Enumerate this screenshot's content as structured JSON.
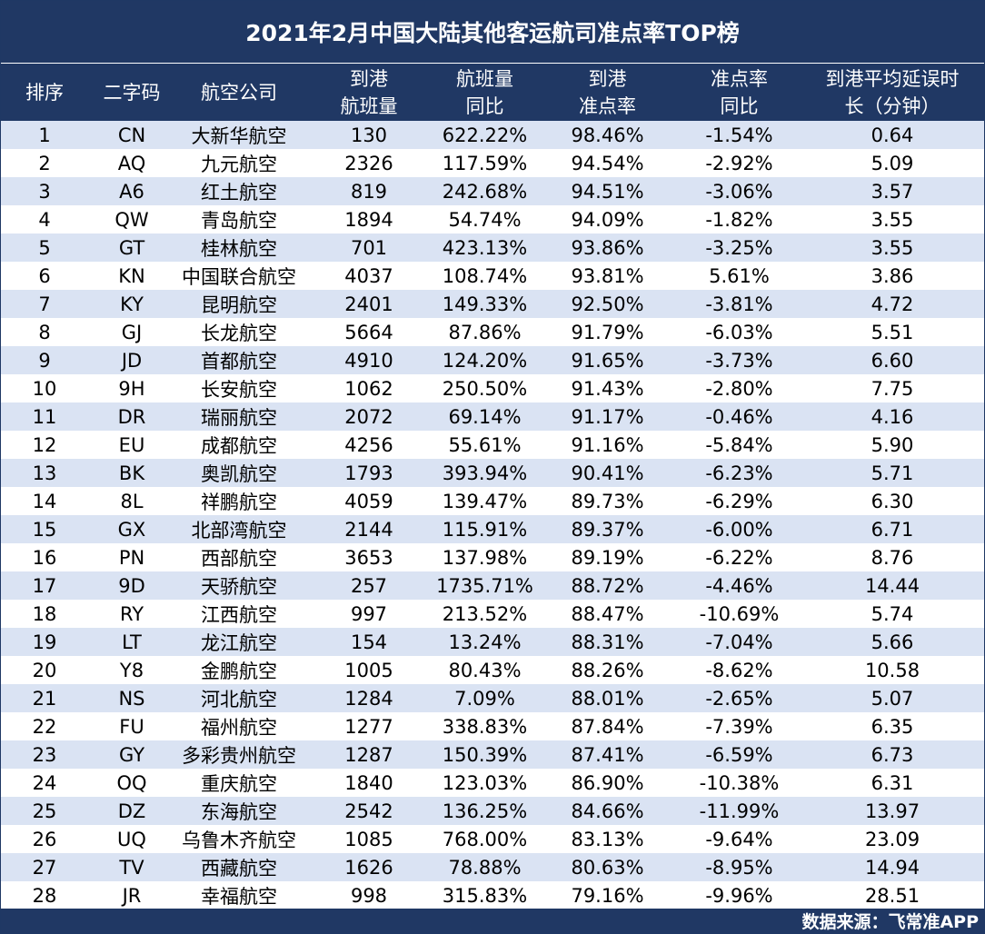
{
  "title": "2021年2月中国大陆其他客运航司准点率TOP榜",
  "headers": [
    [
      "排序"
    ],
    [
      "二字码"
    ],
    [
      "航空公司"
    ],
    [
      "到港",
      "航班量"
    ],
    [
      "航班量",
      "同比"
    ],
    [
      "到港",
      "准点率"
    ],
    [
      "准点率",
      "同比"
    ],
    [
      "到港平均延误时",
      "长（分钟）"
    ]
  ],
  "rows": [
    [
      "1",
      "CN",
      "大新华航空",
      "130",
      "622.22%",
      "98.46%",
      "-1.54%",
      "0.64"
    ],
    [
      "2",
      "AQ",
      "九元航空",
      "2326",
      "117.59%",
      "94.54%",
      "-2.92%",
      "5.09"
    ],
    [
      "3",
      "A6",
      "红土航空",
      "819",
      "242.68%",
      "94.51%",
      "-3.06%",
      "3.57"
    ],
    [
      "4",
      "QW",
      "青岛航空",
      "1894",
      "54.74%",
      "94.09%",
      "-1.82%",
      "3.55"
    ],
    [
      "5",
      "GT",
      "桂林航空",
      "701",
      "423.13%",
      "93.86%",
      "-3.25%",
      "3.55"
    ],
    [
      "6",
      "KN",
      "中国联合航空",
      "4037",
      "108.74%",
      "93.81%",
      "5.61%",
      "3.86"
    ],
    [
      "7",
      "KY",
      "昆明航空",
      "2401",
      "149.33%",
      "92.50%",
      "-3.81%",
      "4.72"
    ],
    [
      "8",
      "GJ",
      "长龙航空",
      "5664",
      "87.86%",
      "91.79%",
      "-6.03%",
      "5.51"
    ],
    [
      "9",
      "JD",
      "首都航空",
      "4910",
      "124.20%",
      "91.65%",
      "-3.73%",
      "6.60"
    ],
    [
      "10",
      "9H",
      "长安航空",
      "1062",
      "250.50%",
      "91.43%",
      "-2.80%",
      "7.75"
    ],
    [
      "11",
      "DR",
      "瑞丽航空",
      "2072",
      "69.14%",
      "91.17%",
      "-0.46%",
      "4.16"
    ],
    [
      "12",
      "EU",
      "成都航空",
      "4256",
      "55.61%",
      "91.16%",
      "-5.84%",
      "5.90"
    ],
    [
      "13",
      "BK",
      "奥凯航空",
      "1793",
      "393.94%",
      "90.41%",
      "-6.23%",
      "5.71"
    ],
    [
      "14",
      "8L",
      "祥鹏航空",
      "4059",
      "139.47%",
      "89.73%",
      "-6.29%",
      "6.30"
    ],
    [
      "15",
      "GX",
      "北部湾航空",
      "2144",
      "115.91%",
      "89.37%",
      "-6.00%",
      "6.71"
    ],
    [
      "16",
      "PN",
      "西部航空",
      "3653",
      "137.98%",
      "89.19%",
      "-6.22%",
      "8.76"
    ],
    [
      "17",
      "9D",
      "天骄航空",
      "257",
      "1735.71%",
      "88.72%",
      "-4.46%",
      "14.44"
    ],
    [
      "18",
      "RY",
      "江西航空",
      "997",
      "213.52%",
      "88.47%",
      "-10.69%",
      "5.74"
    ],
    [
      "19",
      "LT",
      "龙江航空",
      "154",
      "13.24%",
      "88.31%",
      "-7.04%",
      "5.66"
    ],
    [
      "20",
      "Y8",
      "金鹏航空",
      "1005",
      "80.43%",
      "88.26%",
      "-8.62%",
      "10.58"
    ],
    [
      "21",
      "NS",
      "河北航空",
      "1284",
      "7.09%",
      "88.01%",
      "-2.65%",
      "5.07"
    ],
    [
      "22",
      "FU",
      "福州航空",
      "1277",
      "338.83%",
      "87.84%",
      "-7.39%",
      "6.35"
    ],
    [
      "23",
      "GY",
      "多彩贵州航空",
      "1287",
      "150.39%",
      "87.41%",
      "-6.59%",
      "6.73"
    ],
    [
      "24",
      "OQ",
      "重庆航空",
      "1840",
      "123.03%",
      "86.90%",
      "-10.38%",
      "6.31"
    ],
    [
      "25",
      "DZ",
      "东海航空",
      "2542",
      "136.25%",
      "84.66%",
      "-11.99%",
      "13.97"
    ],
    [
      "26",
      "UQ",
      "乌鲁木齐航空",
      "1085",
      "768.00%",
      "83.13%",
      "-9.64%",
      "23.09"
    ],
    [
      "27",
      "TV",
      "西藏航空",
      "1626",
      "78.88%",
      "80.63%",
      "-8.95%",
      "14.94"
    ],
    [
      "28",
      "JR",
      "幸福航空",
      "998",
      "315.83%",
      "79.16%",
      "-9.96%",
      "28.51"
    ]
  ],
  "footer": "数据来源：飞常准APP",
  "colors": {
    "header_bg": "#203864",
    "stripe": "#dae3f3"
  }
}
